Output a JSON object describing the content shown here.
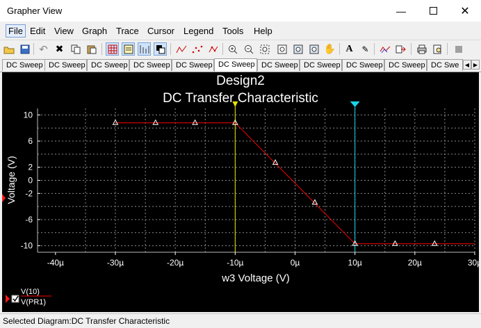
{
  "window": {
    "title": "Grapher View",
    "minimize_icon": "minimize-icon",
    "maximize_icon": "maximize-icon",
    "close_icon": "close-icon"
  },
  "menu": [
    "File",
    "Edit",
    "View",
    "Graph",
    "Trace",
    "Cursor",
    "Legend",
    "Tools",
    "Help"
  ],
  "toolbar": {
    "buttons": [
      "open-icon",
      "save-icon",
      "undo-icon",
      "cut-icon",
      "copy-icon",
      "paste-icon",
      "grid-icon",
      "legend-toggle-icon",
      "cursor-toggle-icon",
      "reverse-colors-icon",
      "trace-line-icon",
      "trace-dots-icon",
      "trace-dots-line-icon",
      "zoom-in-icon",
      "zoom-out-icon",
      "zoom-area-icon",
      "zoom-fit-icon",
      "zoom-x-icon",
      "zoom-y-icon",
      "pan-hand-icon",
      "text-icon",
      "label-icon",
      "add-trace-icon",
      "export-icon",
      "print-icon",
      "print-preview-icon",
      "stop-icon"
    ]
  },
  "tabs": [
    "DC Sweep",
    "DC Sweep",
    "DC Sweep",
    "DC Sweep",
    "DC Sweep",
    "DC Sweep",
    "DC Sweep",
    "DC Sweep",
    "DC Sweep",
    "DC Sweep",
    "DC Swe"
  ],
  "chart_data": {
    "type": "line",
    "title": "Design2",
    "subtitle": "DC Transfer Characteristic",
    "xlabel": "w3 Voltage (V)",
    "ylabel": "Voltage (V)",
    "xlim": [
      -4.3e-05,
      3e-05
    ],
    "ylim": [
      -11,
      11
    ],
    "x_ticks": [
      -4e-05,
      -3e-05,
      -2e-05,
      -1e-05,
      0,
      1e-05,
      2e-05,
      3e-05
    ],
    "x_tick_labels": [
      "-40µ",
      "-30µ",
      "-20µ",
      "-10µ",
      "0µ",
      "10µ",
      "20µ",
      "30µ"
    ],
    "y_ticks": [
      10,
      6,
      2,
      0,
      -2,
      -6,
      -10
    ],
    "y_tick_labels": [
      "10",
      "6",
      "2",
      "0",
      "-2",
      "-6",
      "-10"
    ],
    "y_grid": [
      10,
      8,
      6,
      4,
      2,
      0,
      -2,
      -4,
      -6,
      -8,
      -10
    ],
    "x_grid": [
      -3.5e-05,
      -3e-05,
      -2.5e-05,
      -2e-05,
      -1.5e-05,
      -1e-05,
      -5e-06,
      0,
      5e-06,
      1e-05,
      1.5e-05,
      2e-05,
      2.5e-05,
      3e-05
    ],
    "grid": true,
    "series": [
      {
        "name": "V(10)",
        "color": "#ff0000",
        "marker": "triangle",
        "x": [
          -3e-05,
          -1e-05,
          1e-05,
          3e-05
        ],
        "y": [
          8.8,
          8.8,
          -9.7,
          -9.7
        ],
        "marker_x": [
          -3e-05,
          -2.33e-05,
          -1.67e-05,
          -1e-05,
          -3.3e-06,
          3.3e-06,
          1e-05,
          1.67e-05,
          2.33e-05
        ],
        "marker_y": [
          8.8,
          8.8,
          8.8,
          8.8,
          2.7,
          -3.4,
          -9.7,
          -9.7,
          -9.7
        ]
      }
    ],
    "cursors": [
      {
        "x": -1e-05,
        "color": "#e6e600"
      },
      {
        "x": 1e-05,
        "color": "#19d3e6"
      }
    ],
    "legend": [
      "V(10)",
      "V(PR1)"
    ],
    "legend_position": "bottom-left"
  },
  "status": {
    "text": "Selected Diagram:DC Transfer Characteristic"
  }
}
